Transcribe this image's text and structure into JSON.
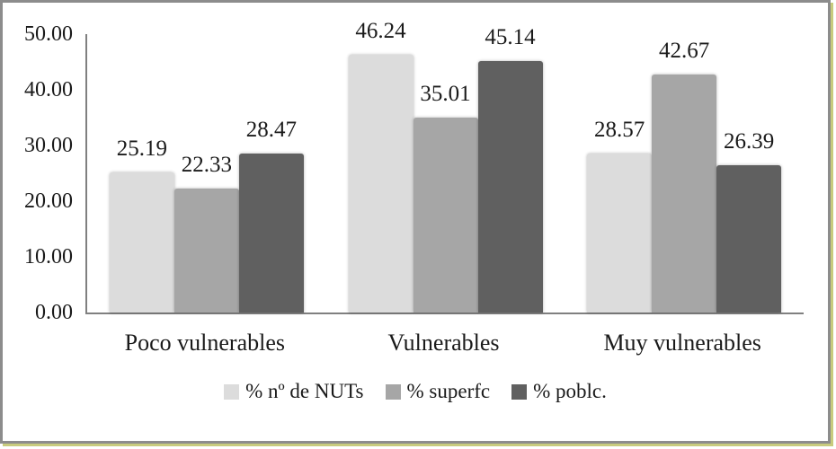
{
  "frame": {
    "border_color": "#8c8c8c",
    "outer_edge_color": "#c8cb7d",
    "background": "#ffffff"
  },
  "axis": {
    "line_color": "#808080",
    "tick_labels": [
      "50.00",
      "40.00",
      "30.00",
      "20.00",
      "10.00",
      "0.00"
    ]
  },
  "chart_data": {
    "type": "bar",
    "title": "",
    "xlabel": "",
    "ylabel": "",
    "ylim": [
      0,
      50
    ],
    "grid": false,
    "legend_position": "bottom",
    "categories": [
      "Poco vulnerables",
      "Vulnerables",
      "Muy vulnerables"
    ],
    "series": [
      {
        "name": "% nº de NUTs",
        "color": "#dcdcdc",
        "values": [
          25.19,
          46.24,
          28.57
        ]
      },
      {
        "name": "% superfc",
        "color": "#a6a6a6",
        "values": [
          22.33,
          35.01,
          42.67
        ]
      },
      {
        "name": "% poblc.",
        "color": "#606060",
        "values": [
          28.47,
          45.14,
          26.39
        ]
      }
    ],
    "value_labels": [
      [
        "25.19",
        "22.33",
        "28.47"
      ],
      [
        "46.24",
        "35.01",
        "45.14"
      ],
      [
        "28.57",
        "42.67",
        "26.39"
      ]
    ]
  }
}
